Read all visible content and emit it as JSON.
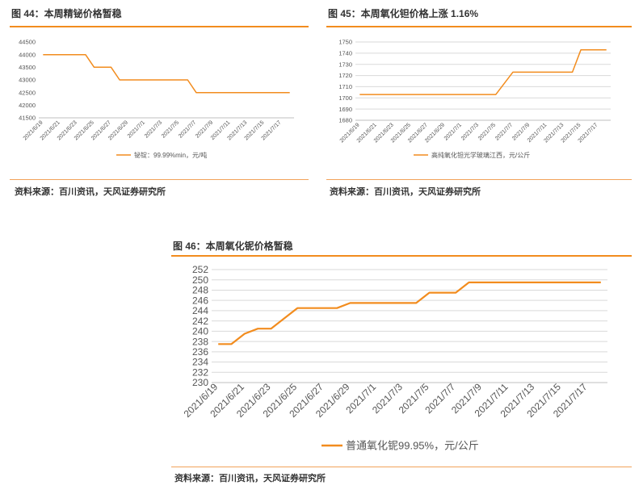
{
  "panels": [
    {
      "title": "图 44：本周精铋价格暂稳",
      "source": "资料来源：百川资讯，天风证券研究所",
      "chart_data": {
        "type": "line",
        "x": [
          "2021/6/19",
          "2021/6/20",
          "2021/6/21",
          "2021/6/22",
          "2021/6/23",
          "2021/6/24",
          "2021/6/25",
          "2021/6/26",
          "2021/6/27",
          "2021/6/28",
          "2021/6/29",
          "2021/6/30",
          "2021/7/1",
          "2021/7/2",
          "2021/7/3",
          "2021/7/4",
          "2021/7/5",
          "2021/7/6",
          "2021/7/7",
          "2021/7/8",
          "2021/7/9",
          "2021/7/10",
          "2021/7/11",
          "2021/7/12",
          "2021/7/13",
          "2021/7/14",
          "2021/7/15",
          "2021/7/16",
          "2021/7/17",
          "2021/7/18"
        ],
        "xticks": [
          "2021/6/19",
          "2021/6/21",
          "2021/6/23",
          "2021/6/25",
          "2021/6/27",
          "2021/6/29",
          "2021/7/1",
          "2021/7/3",
          "2021/7/5",
          "2021/7/7",
          "2021/7/9",
          "2021/7/11",
          "2021/7/13",
          "2021/7/15",
          "2021/7/17"
        ],
        "series": [
          {
            "name": "铋锭：99.99%min，元/吨",
            "values": [
              44000,
              44000,
              44000,
              44000,
              44000,
              44000,
              43500,
              43500,
              43500,
              43000,
              43000,
              43000,
              43000,
              43000,
              43000,
              43000,
              43000,
              43000,
              42500,
              42500,
              42500,
              42500,
              42500,
              42500,
              42500,
              42500,
              42500,
              42500,
              42500,
              42500
            ]
          }
        ],
        "ylim": [
          41500,
          44500
        ],
        "yticks": [
          41500,
          42000,
          42500,
          43000,
          43500,
          44000,
          44500
        ],
        "grid": false,
        "legend": "bottom",
        "color": "#f28c1e"
      }
    },
    {
      "title": "图 45：本周氧化钽价格上涨 1.16%",
      "source": "资料来源：百川资讯，天风证券研究所",
      "chart_data": {
        "type": "line",
        "x": [
          "2021/6/19",
          "2021/6/20",
          "2021/6/21",
          "2021/6/22",
          "2021/6/23",
          "2021/6/24",
          "2021/6/25",
          "2021/6/26",
          "2021/6/27",
          "2021/6/28",
          "2021/6/29",
          "2021/6/30",
          "2021/7/1",
          "2021/7/2",
          "2021/7/3",
          "2021/7/4",
          "2021/7/5",
          "2021/7/6",
          "2021/7/7",
          "2021/7/8",
          "2021/7/9",
          "2021/7/10",
          "2021/7/11",
          "2021/7/12",
          "2021/7/13",
          "2021/7/14",
          "2021/7/15",
          "2021/7/16",
          "2021/7/17",
          "2021/7/18"
        ],
        "xticks": [
          "2021/6/19",
          "2021/6/21",
          "2021/6/23",
          "2021/6/25",
          "2021/6/27",
          "2021/6/29",
          "2021/7/1",
          "2021/7/3",
          "2021/7/5",
          "2021/7/7",
          "2021/7/9",
          "2021/7/11",
          "2021/7/13",
          "2021/7/15",
          "2021/7/17"
        ],
        "series": [
          {
            "name": "高纯氧化钽光学玻璃江西，元/公斤",
            "values": [
              1703,
              1703,
              1703,
              1703,
              1703,
              1703,
              1703,
              1703,
              1703,
              1703,
              1703,
              1703,
              1703,
              1703,
              1703,
              1703,
              1703,
              1713,
              1723,
              1723,
              1723,
              1723,
              1723,
              1723,
              1723,
              1723,
              1743,
              1743,
              1743,
              1743
            ]
          }
        ],
        "ylim": [
          1680,
          1750
        ],
        "yticks": [
          1680,
          1690,
          1700,
          1710,
          1720,
          1730,
          1740,
          1750
        ],
        "grid": true,
        "legend": "bottom",
        "color": "#f28c1e"
      }
    },
    {
      "title": "图 46：本周氧化铌价格暂稳",
      "source": "资料来源：百川资讯，天风证券研究所",
      "chart_data": {
        "type": "line",
        "x": [
          "2021/6/19",
          "2021/6/20",
          "2021/6/21",
          "2021/6/22",
          "2021/6/23",
          "2021/6/24",
          "2021/6/25",
          "2021/6/26",
          "2021/6/27",
          "2021/6/28",
          "2021/6/29",
          "2021/6/30",
          "2021/7/1",
          "2021/7/2",
          "2021/7/3",
          "2021/7/4",
          "2021/7/5",
          "2021/7/6",
          "2021/7/7",
          "2021/7/8",
          "2021/7/9",
          "2021/7/10",
          "2021/7/11",
          "2021/7/12",
          "2021/7/13",
          "2021/7/14",
          "2021/7/15",
          "2021/7/16",
          "2021/7/17",
          "2021/7/18"
        ],
        "xticks": [
          "2021/6/19",
          "2021/6/21",
          "2021/6/23",
          "2021/6/25",
          "2021/6/27",
          "2021/6/29",
          "2021/7/1",
          "2021/7/3",
          "2021/7/5",
          "2021/7/7",
          "2021/7/9",
          "2021/7/11",
          "2021/7/13",
          "2021/7/15",
          "2021/7/17"
        ],
        "series": [
          {
            "name": "普通氧化铌99.95%，元/公斤",
            "values": [
              237.5,
              237.5,
              239.5,
              240.5,
              240.5,
              242.5,
              244.5,
              244.5,
              244.5,
              244.5,
              245.5,
              245.5,
              245.5,
              245.5,
              245.5,
              245.5,
              247.5,
              247.5,
              247.5,
              249.5,
              249.5,
              249.5,
              249.5,
              249.5,
              249.5,
              249.5,
              249.5,
              249.5,
              249.5,
              249.5
            ]
          }
        ],
        "ylim": [
          230,
          252
        ],
        "yticks": [
          230,
          232,
          234,
          236,
          238,
          240,
          242,
          244,
          246,
          248,
          250,
          252
        ],
        "grid": true,
        "legend": "bottom",
        "color": "#f28c1e"
      }
    }
  ]
}
